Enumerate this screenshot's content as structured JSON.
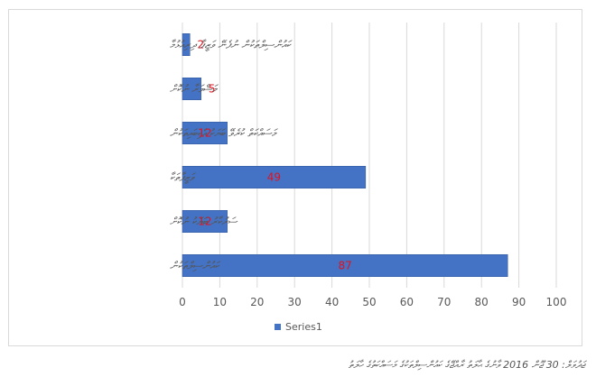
{
  "chart_data": {
    "type": "bar",
    "orientation": "horizontal",
    "categories": [
      "ކައުންސިލްތަކުން ނުފެނޭ ވަޒީފާ ދިރިއުޅުމާ",
      "މަޝްވަރާ ނުކޮށް",
      "މަސައްކަތް ކުރެވޭ ބަޔަކު އެކިބައިތަކުން",
      "ވަޒީފާތަކާ",
      "ސަރުކާރު ބަޔަކު ނުކޮށް",
      "ކައުންސިލްތަކުން"
    ],
    "series": [
      {
        "name": "Series1",
        "values": [
          2,
          5,
          12,
          49,
          12,
          87
        ],
        "color": "#4472c4"
      }
    ],
    "xlim": [
      0,
      100
    ],
    "x_ticks": [
      "0",
      "10",
      "20",
      "30",
      "40",
      "50",
      "60",
      "70",
      "80",
      "90",
      "100"
    ],
    "grid": true,
    "legend_position": "bottom",
    "data_label_color": "#e3111d"
  },
  "caption": "ޖަދުވަލް: 30 ޖޫން 2016 ވާނުގެ ޙާލަތު ރާއްޖޭގެ ކައުންސިލްތަކުގެ މަސައްކަތުގެ ހާލަތު"
}
